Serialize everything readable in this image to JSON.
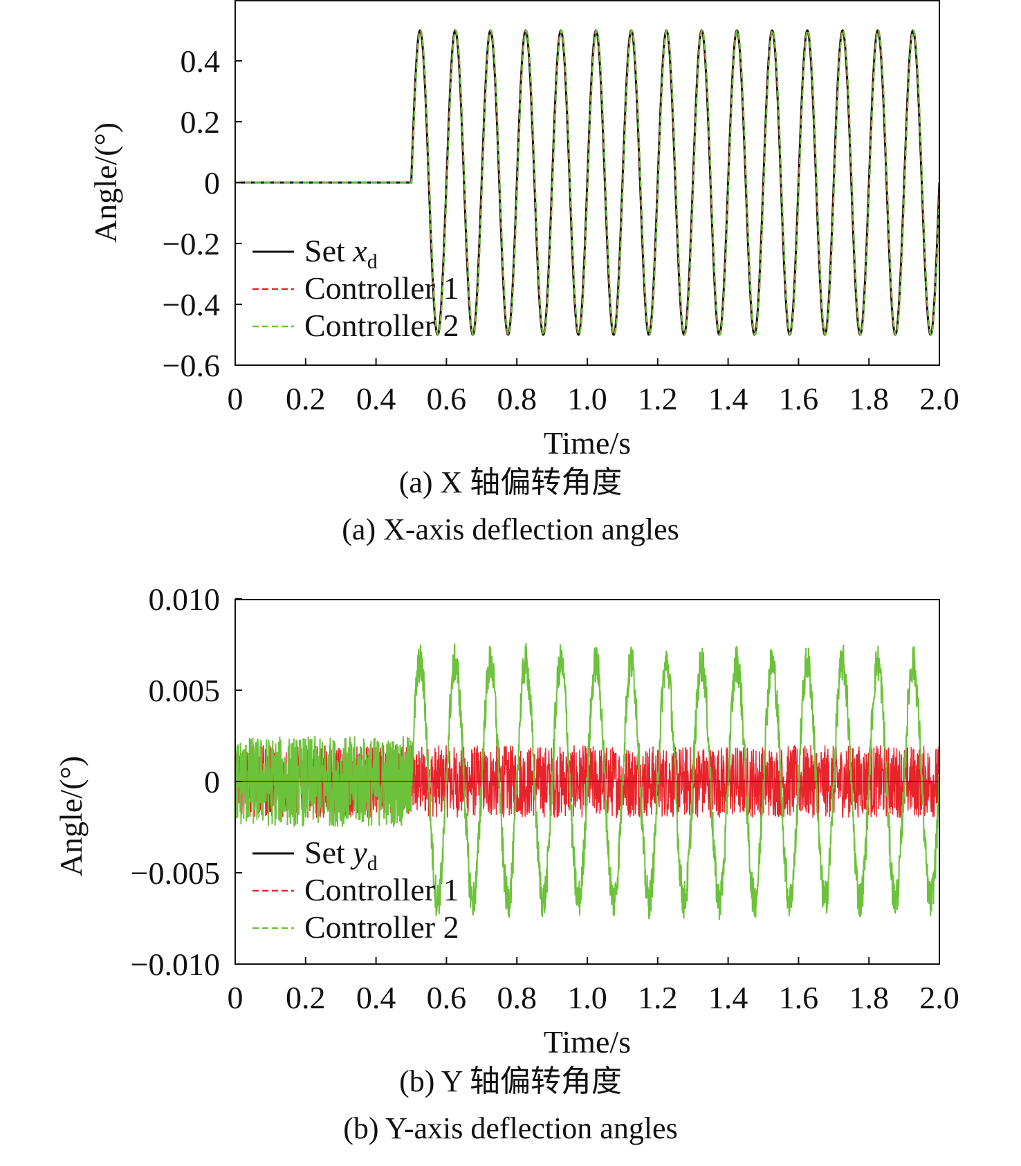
{
  "chart_data": [
    {
      "type": "line",
      "panel": "a",
      "xlabel": "Time/s",
      "ylabel": "Angle/(°)",
      "xlim": [
        0,
        2.0
      ],
      "ylim": [
        -0.6,
        0.6
      ],
      "xticks": [
        "0",
        "0.2",
        "0.4",
        "0.6",
        "0.8",
        "1.0",
        "1.2",
        "1.4",
        "1.6",
        "1.8",
        "2.0"
      ],
      "yticks": [
        "−0.6",
        "−0.4",
        "−0.2",
        "0",
        "0.2",
        "0.4"
      ],
      "ytick_values": [
        -0.6,
        -0.4,
        -0.2,
        0,
        0.2,
        0.4
      ],
      "signal": {
        "start_time": 0.5,
        "amplitude": 0.5,
        "frequency_hz": 10
      },
      "legend_position": "bottom-left",
      "series": [
        {
          "name": "Set x",
          "subscript": "d",
          "color": "#111111",
          "dash": "solid"
        },
        {
          "name": "Controller 1",
          "color": "#e8242b",
          "dash": "dashed",
          "noise_amplitude": 0
        },
        {
          "name": "Controller 2",
          "color": "#6cc23a",
          "dash": "dashed",
          "noise_amplitude": 0
        }
      ],
      "caption_cn": "(a) X 轴偏转角度",
      "caption_en": "(a) X-axis deflection angles"
    },
    {
      "type": "line",
      "panel": "b",
      "xlabel": "Time/s",
      "ylabel": "Angle/(°)",
      "xlim": [
        0,
        2.0
      ],
      "ylim": [
        -0.01,
        0.01
      ],
      "xticks": [
        "0",
        "0.2",
        "0.4",
        "0.6",
        "0.8",
        "1.0",
        "1.2",
        "1.4",
        "1.6",
        "1.8",
        "2.0"
      ],
      "yticks": [
        "−0.010",
        "−0.005",
        "0",
        "0.005",
        "0.010"
      ],
      "ytick_values": [
        -0.01,
        -0.005,
        0,
        0.005,
        0.01
      ],
      "signal": {
        "start_time": 0.5,
        "frequency_hz": 10
      },
      "legend_position": "bottom-left",
      "series": [
        {
          "name": "Set y",
          "subscript": "d",
          "color": "#111111",
          "dash": "solid",
          "value": 0
        },
        {
          "name": "Controller 1",
          "color": "#e8242b",
          "dash": "dashed",
          "noise_band": [
            -0.002,
            0.002
          ]
        },
        {
          "name": "Controller 2",
          "color": "#6cc23a",
          "dash": "dashed",
          "noise_band_before_start": [
            -0.0025,
            0.0025
          ],
          "oscillation_amplitude_after_start": 0.0065
        }
      ],
      "caption_cn": "(b) Y 轴偏转角度",
      "caption_en": "(b) Y-axis deflection angles"
    }
  ]
}
